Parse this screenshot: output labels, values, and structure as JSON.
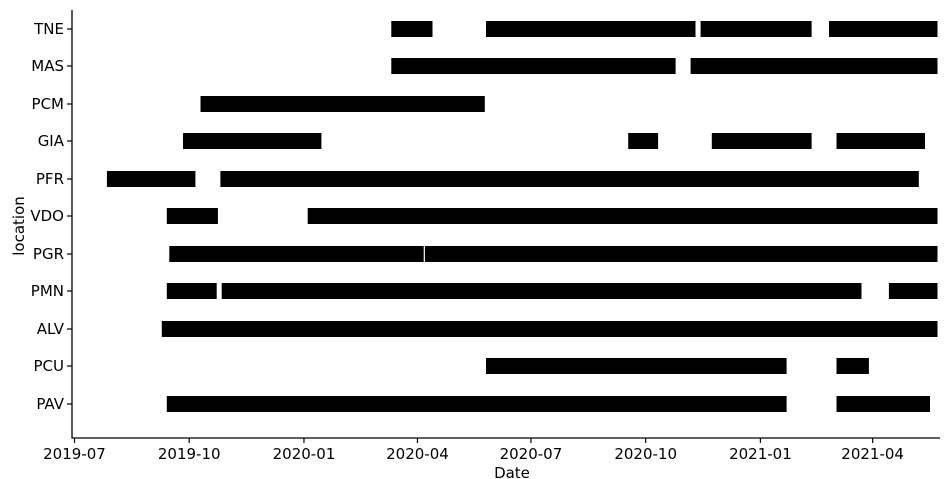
{
  "chart_data": {
    "type": "timeline",
    "title": "",
    "xlabel": "Date",
    "ylabel": "location",
    "x_ticks": [
      "2019-07",
      "2019-10",
      "2020-01",
      "2020-04",
      "2020-07",
      "2020-10",
      "2021-01",
      "2021-04"
    ],
    "xlim": [
      "2019-06-29",
      "2021-05-25"
    ],
    "bar_color": "#000000",
    "categories": [
      "TNE",
      "MAS",
      "PCM",
      "GIA",
      "PFR",
      "VDO",
      "PGR",
      "PMN",
      "ALV",
      "PCU",
      "PAV"
    ],
    "series": [
      {
        "location": "TNE",
        "intervals": [
          [
            "2020-03-11",
            "2020-04-13"
          ],
          [
            "2020-05-26",
            "2020-11-10"
          ],
          [
            "2020-11-14",
            "2021-02-11"
          ],
          [
            "2021-02-25",
            "2021-05-23"
          ]
        ]
      },
      {
        "location": "MAS",
        "intervals": [
          [
            "2020-03-11",
            "2020-10-25"
          ],
          [
            "2020-11-06",
            "2021-05-23"
          ]
        ]
      },
      {
        "location": "PCM",
        "intervals": [
          [
            "2019-10-10",
            "2020-05-25"
          ]
        ]
      },
      {
        "location": "GIA",
        "intervals": [
          [
            "2019-09-26",
            "2020-01-15"
          ],
          [
            "2020-09-17",
            "2020-10-11"
          ],
          [
            "2020-11-23",
            "2021-02-11"
          ],
          [
            "2021-03-03",
            "2021-05-13"
          ]
        ]
      },
      {
        "location": "PFR",
        "intervals": [
          [
            "2019-07-27",
            "2019-10-06"
          ],
          [
            "2019-10-26",
            "2021-05-08"
          ]
        ]
      },
      {
        "location": "VDO",
        "intervals": [
          [
            "2019-09-13",
            "2019-10-24"
          ],
          [
            "2020-01-04",
            "2021-05-23"
          ]
        ]
      },
      {
        "location": "PGR",
        "intervals": [
          [
            "2019-09-15",
            "2020-04-06"
          ],
          [
            "2020-04-07",
            "2021-05-23"
          ]
        ]
      },
      {
        "location": "PMN",
        "intervals": [
          [
            "2019-09-13",
            "2019-10-23"
          ],
          [
            "2019-10-27",
            "2021-03-23"
          ],
          [
            "2021-04-14",
            "2021-05-23"
          ]
        ]
      },
      {
        "location": "ALV",
        "intervals": [
          [
            "2019-09-09",
            "2021-05-23"
          ]
        ]
      },
      {
        "location": "PCU",
        "intervals": [
          [
            "2020-05-26",
            "2021-01-22"
          ],
          [
            "2021-03-03",
            "2021-03-29"
          ]
        ]
      },
      {
        "location": "PAV",
        "intervals": [
          [
            "2019-09-13",
            "2021-01-22"
          ],
          [
            "2021-03-03",
            "2021-05-17"
          ]
        ]
      }
    ]
  }
}
